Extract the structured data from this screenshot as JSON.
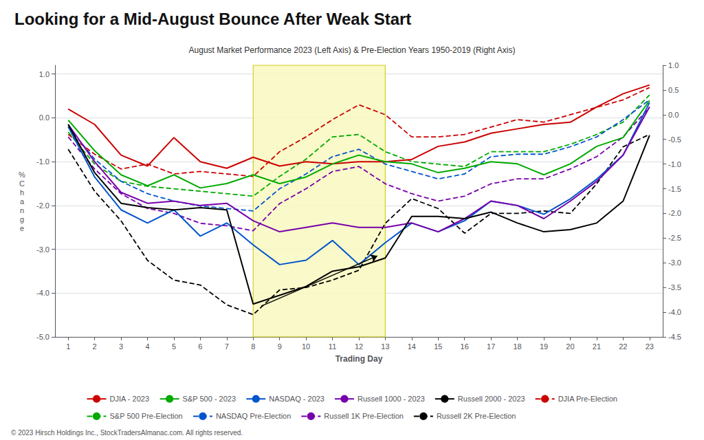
{
  "chart_data": {
    "type": "line",
    "title": "Looking for a Mid-August Bounce After Weak Start",
    "subtitle": "August Market Performance 2023 (Left Axis) & Pre-Election Years 1950-2019 (Right Axis)",
    "xlabel": "Trading Day",
    "ylabel": "%\nC\nh\na\nn\ng\ne",
    "x": [
      1,
      2,
      3,
      4,
      5,
      6,
      7,
      8,
      9,
      10,
      11,
      12,
      13,
      14,
      15,
      16,
      17,
      18,
      19,
      20,
      21,
      22,
      23
    ],
    "xlim": [
      0.5,
      23.5
    ],
    "xticks": [
      1,
      2,
      3,
      4,
      5,
      6,
      7,
      8,
      9,
      10,
      11,
      12,
      13,
      14,
      15,
      16,
      17,
      18,
      19,
      20,
      21,
      22,
      23
    ],
    "ylim": [
      -5.0,
      1.2
    ],
    "yticks": [
      {
        "value": -5,
        "label": "-5.0"
      },
      {
        "value": -4,
        "label": "-4.0"
      },
      {
        "value": -3,
        "label": "-3.0"
      },
      {
        "value": -2,
        "label": "-2.0"
      },
      {
        "value": -1,
        "label": "-1.0"
      },
      {
        "value": 0,
        "label": "0.0"
      },
      {
        "value": 1,
        "label": "1.0"
      }
    ],
    "y2lim": [
      -4.5,
      1.0
    ],
    "y2ticks": [
      -4.5,
      {
        "value": -4,
        "label": "-4.0"
      },
      -3.5,
      {
        "value": -3,
        "label": "-3.0"
      },
      -2.5,
      {
        "value": -2,
        "label": "-2.0"
      },
      -1.5,
      {
        "value": -1,
        "label": "-1.0"
      },
      -0.5,
      {
        "value": 0,
        "label": "0.0"
      },
      0.5,
      {
        "value": 1,
        "label": "1.0"
      }
    ],
    "grid": true,
    "legend": "bottom",
    "series": [
      {
        "name": "DJIA - 2023",
        "color": "#cc0000",
        "line_style": "solid",
        "values": [
          0.2,
          -0.15,
          -0.85,
          -1.1,
          -0.45,
          -1.0,
          -1.15,
          -0.9,
          -1.1,
          -1.0,
          -1.05,
          -1.0,
          -1.0,
          -0.95,
          -0.65,
          -0.55,
          -0.35,
          -0.25,
          -0.15,
          -0.1,
          0.25,
          0.55,
          0.75
        ]
      },
      {
        "name": "S&P 500 - 2023",
        "color": "#00aa00",
        "line_style": "solid",
        "values": [
          -0.05,
          -0.75,
          -1.3,
          -1.55,
          -1.3,
          -1.6,
          -1.5,
          -1.3,
          -1.5,
          -1.35,
          -1.05,
          -0.85,
          -1.0,
          -1.05,
          -1.25,
          -1.15,
          -1.0,
          -1.05,
          -1.3,
          -1.05,
          -0.65,
          -0.45,
          0.4
        ]
      },
      {
        "name": "NASDAQ - 2023",
        "color": "#0055cc",
        "line_style": "solid",
        "values": [
          -0.2,
          -1.35,
          -2.1,
          -2.4,
          -2.1,
          -2.7,
          -2.4,
          -2.9,
          -3.35,
          -3.25,
          -2.8,
          -3.35,
          -2.85,
          -2.4,
          -2.6,
          -2.35,
          -1.9,
          -2.0,
          -2.2,
          -1.85,
          -1.4,
          -0.85,
          0.35
        ]
      },
      {
        "name": "Russell 1000 - 2023",
        "color": "#7700aa",
        "line_style": "solid",
        "values": [
          -0.15,
          -1.0,
          -1.7,
          -1.95,
          -1.9,
          -2.0,
          -1.95,
          -2.35,
          -2.6,
          -2.5,
          -2.4,
          -2.5,
          -2.5,
          -2.4,
          -2.6,
          -2.3,
          -1.9,
          -2.0,
          -2.3,
          -1.9,
          -1.45,
          -0.85,
          0.25
        ]
      },
      {
        "name": "Russell 2000 - 2023",
        "color": "#000000",
        "line_style": "solid",
        "values": [
          -0.15,
          -1.25,
          -1.95,
          -2.05,
          -2.1,
          -2.05,
          -2.1,
          -4.25,
          -4.05,
          -3.85,
          -3.5,
          -3.4,
          -3.2,
          -2.25,
          -2.25,
          -2.3,
          -2.15,
          -2.4,
          -2.6,
          -2.55,
          -2.4,
          -1.9,
          -0.4
        ]
      },
      {
        "name": "DJIA Pre-Election",
        "color": "#cc0000",
        "line_style": "dashed",
        "axis": "y2",
        "values": [
          -0.4,
          -0.8,
          -1.1,
          -1.0,
          -1.2,
          -1.15,
          -1.2,
          -1.25,
          -0.75,
          -0.45,
          -0.1,
          0.2,
          0.0,
          -0.45,
          -0.45,
          -0.4,
          -0.25,
          -0.1,
          -0.15,
          0.0,
          0.15,
          0.3,
          0.55
        ]
      },
      {
        "name": "S&P 500 Pre-Election",
        "color": "#00aa00",
        "line_style": "dashed",
        "axis": "y2",
        "values": [
          -0.35,
          -1.0,
          -1.35,
          -1.45,
          -1.5,
          -1.55,
          -1.6,
          -1.65,
          -1.25,
          -0.9,
          -0.45,
          -0.4,
          -0.75,
          -0.95,
          -1.0,
          -1.05,
          -0.75,
          -0.75,
          -0.75,
          -0.6,
          -0.4,
          -0.15,
          0.4
        ]
      },
      {
        "name": "NASDAQ Pre-Election",
        "color": "#0055cc",
        "line_style": "dashed",
        "axis": "y2",
        "values": [
          -0.25,
          -0.9,
          -1.35,
          -1.6,
          -1.75,
          -1.85,
          -1.9,
          -1.95,
          -1.5,
          -1.2,
          -0.85,
          -0.7,
          -1.0,
          -1.15,
          -1.3,
          -1.2,
          -0.85,
          -0.8,
          -0.8,
          -0.65,
          -0.45,
          -0.1,
          0.3
        ]
      },
      {
        "name": "Russell 1K Pre-Election",
        "color": "#7700aa",
        "line_style": "dashed",
        "axis": "y2",
        "values": [
          -0.45,
          -1.1,
          -1.6,
          -1.9,
          -2.0,
          -2.2,
          -2.25,
          -2.35,
          -1.8,
          -1.5,
          -1.15,
          -1.05,
          -1.4,
          -1.6,
          -1.75,
          -1.65,
          -1.4,
          -1.3,
          -1.3,
          -1.1,
          -0.85,
          -0.45,
          0.15
        ]
      },
      {
        "name": "Russell 2K Pre-Election",
        "color": "#000000",
        "line_style": "dashed",
        "axis": "y2",
        "values": [
          -0.7,
          -1.55,
          -2.15,
          -2.95,
          -3.35,
          -3.45,
          -3.85,
          -4.05,
          -3.55,
          -3.5,
          -3.35,
          -3.15,
          -2.2,
          -1.7,
          -1.9,
          -2.4,
          -2.0,
          -2.0,
          -1.95,
          -2.0,
          -1.4,
          -0.65,
          -0.4
        ]
      }
    ],
    "annotations": [
      {
        "kind": "span",
        "x": [
          8,
          13
        ]
      },
      {
        "kind": "arrow",
        "x": [
          8.3,
          12.7
        ],
        "y": [
          -4.3,
          -3.15
        ]
      },
      {
        "text": "© 2023 Hirsch Holdings Inc., StockTradersAlmanac.com. All rights reserved."
      }
    ]
  }
}
